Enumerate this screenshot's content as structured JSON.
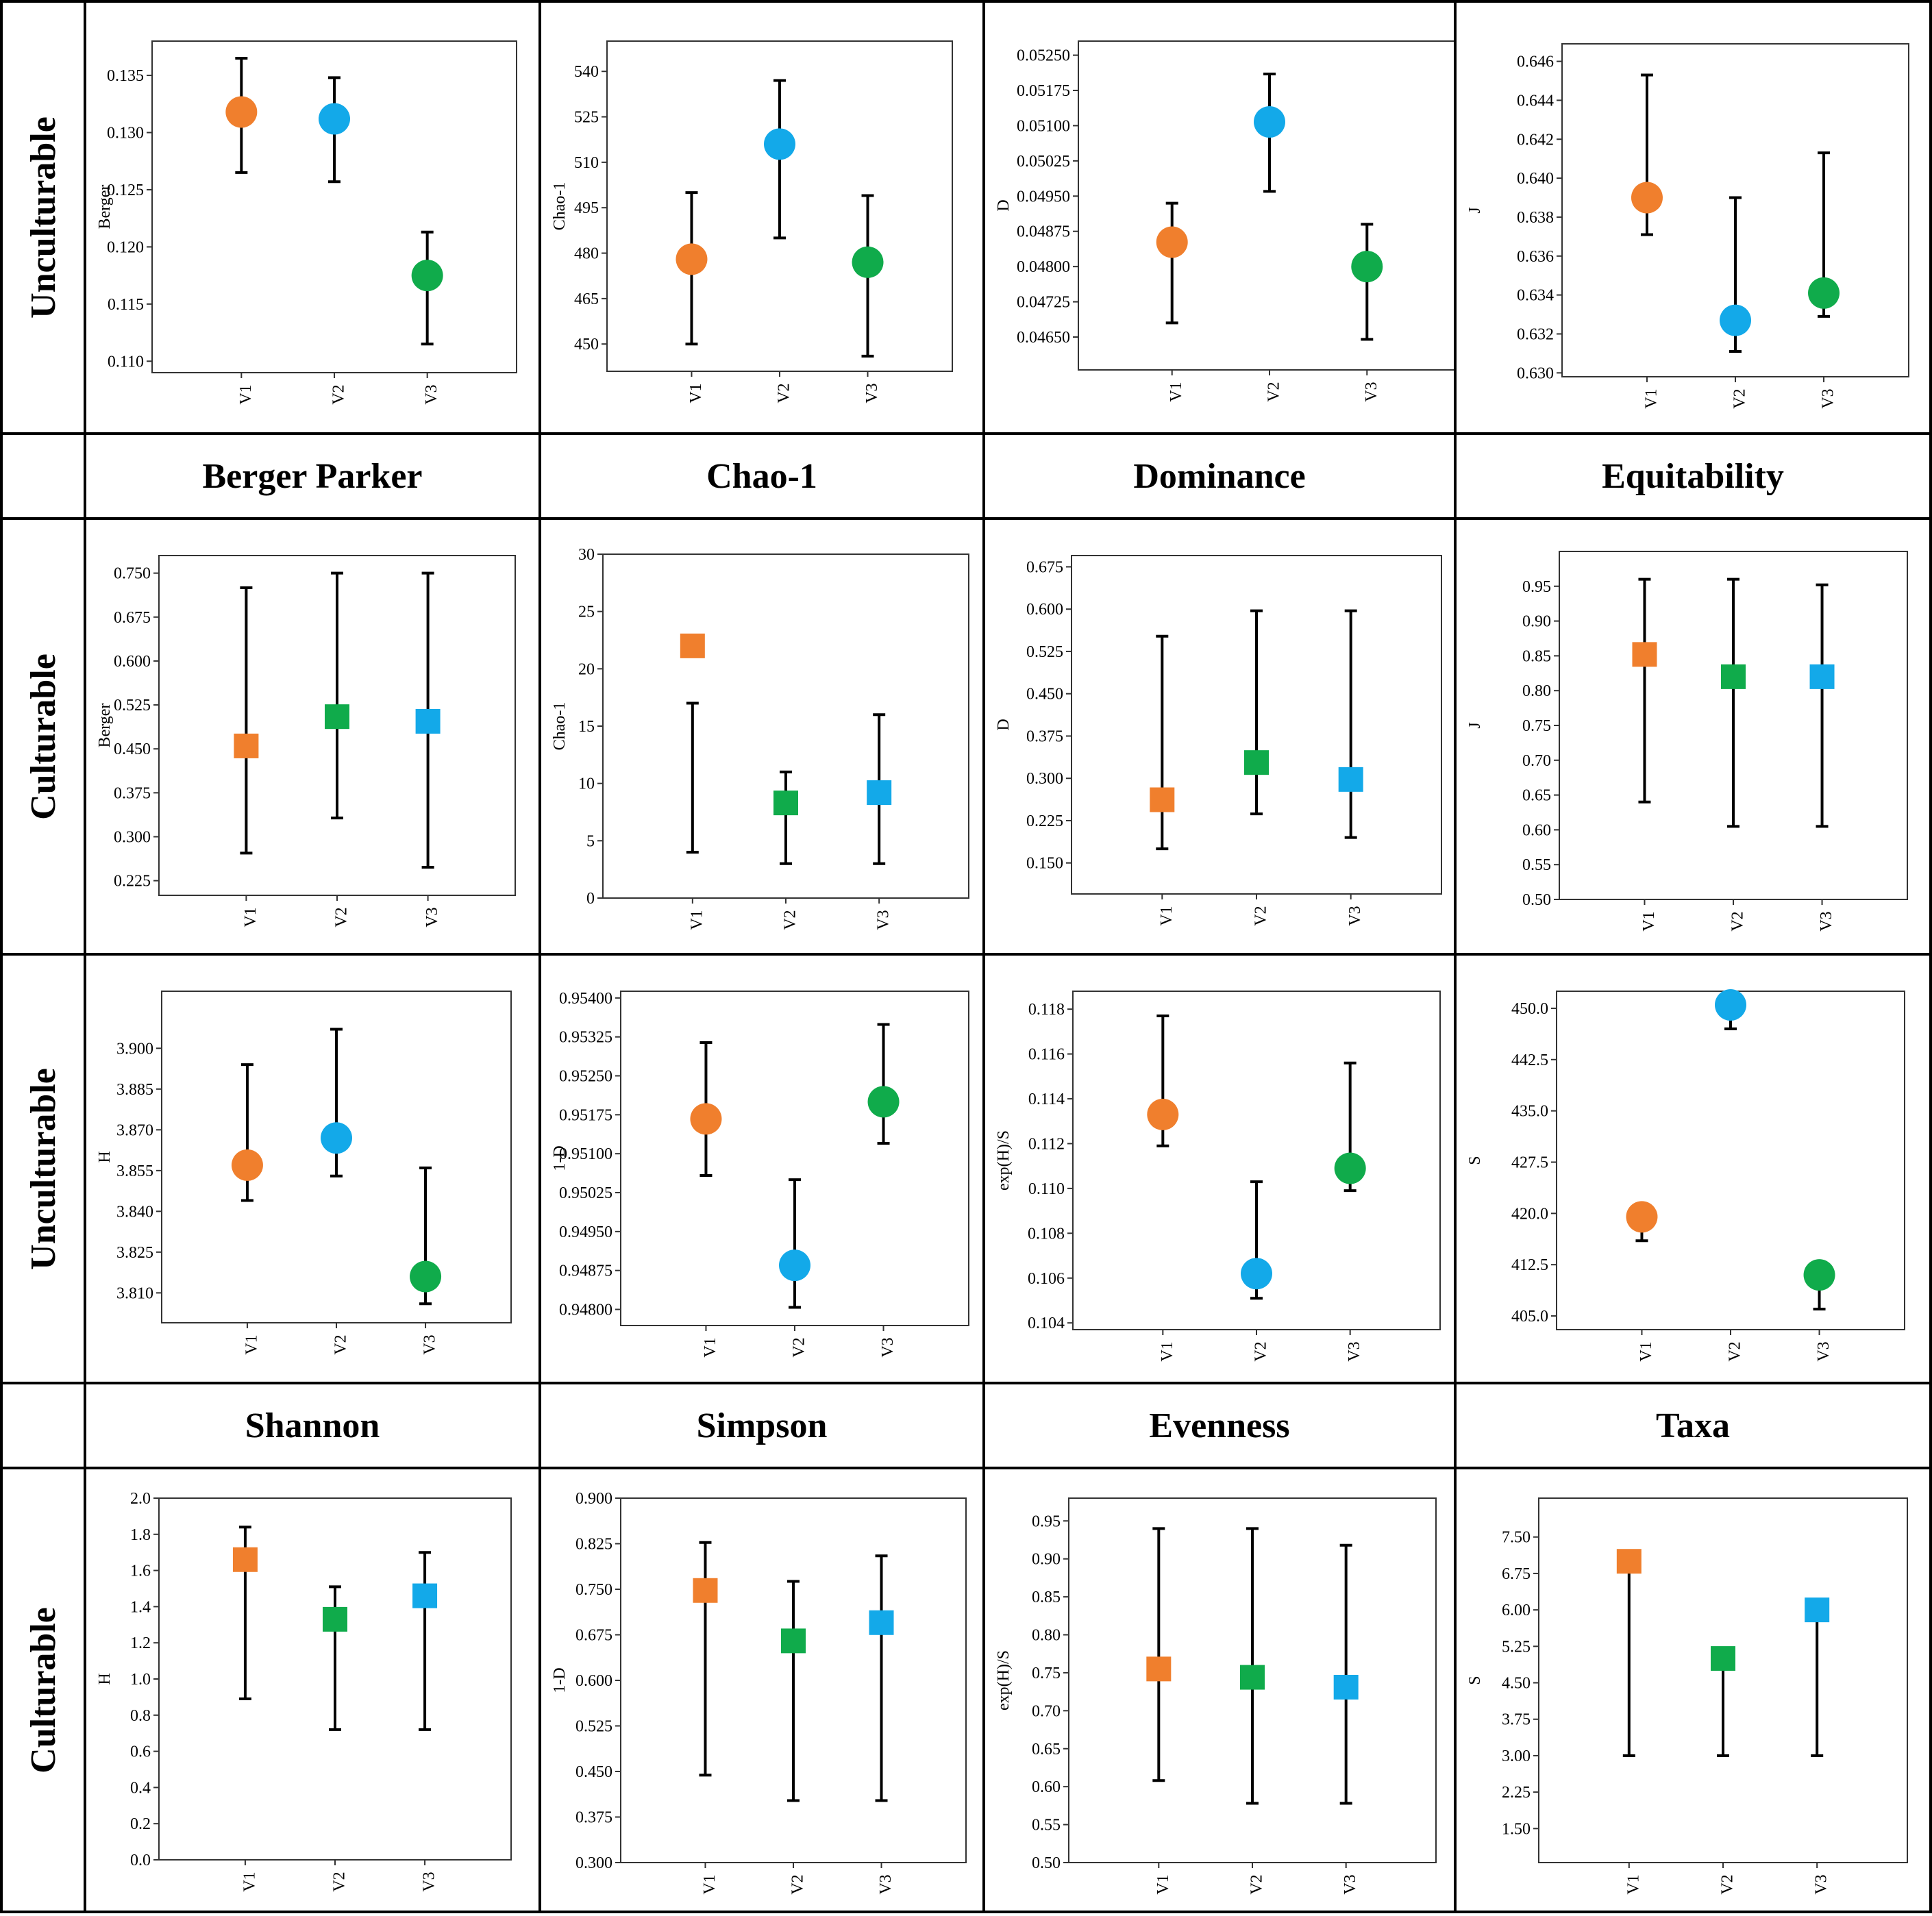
{
  "colors": {
    "orange": "#F07F2D",
    "blue": "#13A9E9",
    "green": "#10AB4B"
  },
  "row_labels": [
    "Unculturable",
    "Culturable",
    "Unculturable",
    "Culturable"
  ],
  "titles_row1": [
    "Berger Parker",
    "Chao-1",
    "Dominance",
    "Equitability"
  ],
  "titles_row2": [
    "Shannon",
    "Simpson",
    "Evenness",
    "Taxa"
  ],
  "chart_data": [
    {
      "type": "scatter",
      "panel": "Berger Parker - Unculturable",
      "ylabel": "Berger",
      "categories": [
        "V1",
        "V2",
        "V3"
      ],
      "ylim": [
        0.109,
        0.138
      ],
      "yticks": [
        "0.110",
        "0.115",
        "0.120",
        "0.125",
        "0.130",
        "0.135"
      ],
      "marker": "circle",
      "colors": [
        "orange",
        "blue",
        "green"
      ],
      "values": [
        0.1318,
        0.1312,
        0.1175
      ],
      "err_low": [
        0.1265,
        0.1257,
        0.1115
      ],
      "err_high": [
        0.1365,
        0.1348,
        0.1213
      ]
    },
    {
      "type": "scatter",
      "panel": "Chao-1 - Unculturable",
      "ylabel": "Chao-1",
      "categories": [
        "V1",
        "V2",
        "V3"
      ],
      "ylim": [
        441,
        550
      ],
      "yticks": [
        "450",
        "465",
        "480",
        "495",
        "510",
        "525",
        "540"
      ],
      "marker": "circle",
      "colors": [
        "orange",
        "blue",
        "green"
      ],
      "values": [
        478,
        516,
        477
      ],
      "err_low": [
        450,
        485,
        446
      ],
      "err_high": [
        500,
        537,
        499
      ]
    },
    {
      "type": "scatter",
      "panel": "Dominance - Unculturable",
      "ylabel": "D",
      "categories": [
        "V1",
        "V2",
        "V3"
      ],
      "ylim": [
        0.0458,
        0.0528
      ],
      "yticks": [
        "0.04650",
        "0.04725",
        "0.04800",
        "0.04875",
        "0.04950",
        "0.05025",
        "0.05100",
        "0.05175",
        "0.05250"
      ],
      "marker": "circle",
      "colors": [
        "orange",
        "blue",
        "green"
      ],
      "values": [
        0.04852,
        0.05108,
        0.048
      ],
      "err_low": [
        0.0468,
        0.0496,
        0.04645
      ],
      "err_high": [
        0.04935,
        0.0521,
        0.0489
      ]
    },
    {
      "type": "scatter",
      "panel": "Equitability - Unculturable",
      "ylabel": "J",
      "categories": [
        "V1",
        "V2",
        "V3"
      ],
      "ylim": [
        0.6298,
        0.6469
      ],
      "yticks": [
        "0.630",
        "0.632",
        "0.634",
        "0.636",
        "0.638",
        "0.640",
        "0.642",
        "0.644",
        "0.646"
      ],
      "marker": "circle",
      "colors": [
        "orange",
        "blue",
        "green"
      ],
      "values": [
        0.639,
        0.6327,
        0.6341
      ],
      "err_low": [
        0.6371,
        0.6311,
        0.6329
      ],
      "err_high": [
        0.6453,
        0.639,
        0.6413
      ]
    },
    {
      "type": "scatter",
      "panel": "Berger Parker - Culturable",
      "ylabel": "Berger",
      "categories": [
        "V1",
        "V2",
        "V3"
      ],
      "ylim": [
        0.2,
        0.78
      ],
      "yticks": [
        "0.225",
        "0.300",
        "0.375",
        "0.450",
        "0.525",
        "0.600",
        "0.675",
        "0.750"
      ],
      "marker": "square",
      "colors": [
        "orange",
        "green",
        "blue"
      ],
      "values": [
        0.455,
        0.505,
        0.497
      ],
      "err_low": [
        0.272,
        0.332,
        0.248
      ],
      "err_high": [
        0.725,
        0.75,
        0.75
      ]
    },
    {
      "type": "scatter",
      "panel": "Chao-1 - Culturable",
      "ylabel": "Chao-1",
      "categories": [
        "V1",
        "V2",
        "V3"
      ],
      "ylim": [
        0,
        30
      ],
      "yticks": [
        "0",
        "5",
        "10",
        "15",
        "20",
        "25",
        "30"
      ],
      "marker": "square",
      "colors": [
        "orange",
        "green",
        "blue"
      ],
      "values": [
        22,
        8.3,
        9.2
      ],
      "err_low": [
        4,
        3,
        3
      ],
      "err_high": [
        17,
        11,
        16
      ]
    },
    {
      "type": "scatter",
      "panel": "Dominance - Culturable",
      "ylabel": "D",
      "categories": [
        "V1",
        "V2",
        "V3"
      ],
      "ylim": [
        0.095,
        0.695
      ],
      "yticks": [
        "0.150",
        "0.225",
        "0.300",
        "0.375",
        "0.450",
        "0.525",
        "0.600",
        "0.675"
      ],
      "marker": "square",
      "colors": [
        "orange",
        "green",
        "blue"
      ],
      "values": [
        0.262,
        0.328,
        0.298
      ],
      "err_low": [
        0.175,
        0.237,
        0.195
      ],
      "err_high": [
        0.552,
        0.597,
        0.597
      ]
    },
    {
      "type": "scatter",
      "panel": "Equitability - Culturable",
      "ylabel": "J",
      "categories": [
        "V1",
        "V2",
        "V3"
      ],
      "ylim": [
        0.5,
        1.0
      ],
      "yticks": [
        "0.50",
        "0.55",
        "0.60",
        "0.65",
        "0.70",
        "0.75",
        "0.80",
        "0.85",
        "0.90",
        "0.95"
      ],
      "marker": "square",
      "colors": [
        "orange",
        "green",
        "blue"
      ],
      "values": [
        0.852,
        0.82,
        0.82
      ],
      "err_low": [
        0.64,
        0.605,
        0.605
      ],
      "err_high": [
        0.96,
        0.96,
        0.952
      ]
    },
    {
      "type": "scatter",
      "panel": "Shannon - Unculturable",
      "ylabel": "H",
      "categories": [
        "V1",
        "V2",
        "V3"
      ],
      "ylim": [
        3.799,
        3.921
      ],
      "yticks": [
        "3.810",
        "3.825",
        "3.840",
        "3.855",
        "3.870",
        "3.885",
        "3.900"
      ],
      "marker": "circle",
      "colors": [
        "orange",
        "blue",
        "green"
      ],
      "values": [
        3.857,
        3.867,
        3.816
      ],
      "err_low": [
        3.844,
        3.853,
        3.806
      ],
      "err_high": [
        3.894,
        3.907,
        3.856
      ]
    },
    {
      "type": "scatter",
      "panel": "Simpson - Unculturable",
      "ylabel": "1-D",
      "categories": [
        "V1",
        "V2",
        "V3"
      ],
      "ylim": [
        0.94769,
        0.95413
      ],
      "yticks": [
        "0.94800",
        "0.94875",
        "0.94950",
        "0.95025",
        "0.95100",
        "0.95175",
        "0.95250",
        "0.95325",
        "0.95400"
      ],
      "marker": "circle",
      "colors": [
        "orange",
        "blue",
        "green"
      ],
      "values": [
        0.95167,
        0.94885,
        0.952
      ],
      "err_low": [
        0.95058,
        0.94804,
        0.9512
      ],
      "err_high": [
        0.95314,
        0.9505,
        0.95349
      ]
    },
    {
      "type": "scatter",
      "panel": "Evenness - Unculturable",
      "ylabel": "exp(H)/S",
      "categories": [
        "V1",
        "V2",
        "V3"
      ],
      "ylim": [
        0.1037,
        0.1188
      ],
      "yticks": [
        "0.104",
        "0.106",
        "0.108",
        "0.110",
        "0.112",
        "0.114",
        "0.116",
        "0.118"
      ],
      "marker": "circle",
      "colors": [
        "orange",
        "blue",
        "green"
      ],
      "values": [
        0.1133,
        0.1062,
        0.1109
      ],
      "err_low": [
        0.1119,
        0.1051,
        0.1099
      ],
      "err_high": [
        0.1177,
        0.1103,
        0.1156
      ]
    },
    {
      "type": "scatter",
      "panel": "Taxa - Unculturable",
      "ylabel": "S",
      "categories": [
        "V1",
        "V2",
        "V3"
      ],
      "ylim": [
        403,
        452.5
      ],
      "yticks": [
        "405.0",
        "412.5",
        "420.0",
        "427.5",
        "435.0",
        "442.5",
        "450.0"
      ],
      "marker": "circle",
      "colors": [
        "orange",
        "blue",
        "green"
      ],
      "values": [
        419.5,
        450.5,
        411
      ],
      "err_low": [
        416,
        447,
        406
      ],
      "err_high": [
        419,
        450,
        411
      ]
    },
    {
      "type": "scatter",
      "panel": "Shannon - Culturable",
      "ylabel": "H",
      "categories": [
        "V1",
        "V2",
        "V3"
      ],
      "ylim": [
        0,
        2.0
      ],
      "yticks": [
        "0.0",
        "0.2",
        "0.4",
        "0.6",
        "0.8",
        "1.0",
        "1.2",
        "1.4",
        "1.6",
        "1.8",
        "2.0"
      ],
      "marker": "square",
      "colors": [
        "orange",
        "green",
        "blue"
      ],
      "values": [
        1.66,
        1.33,
        1.46
      ],
      "err_low": [
        0.89,
        0.72,
        0.72
      ],
      "err_high": [
        1.84,
        1.51,
        1.7
      ]
    },
    {
      "type": "scatter",
      "panel": "Simpson - Culturable",
      "ylabel": "1-D",
      "categories": [
        "V1",
        "V2",
        "V3"
      ],
      "ylim": [
        0.3,
        0.9
      ],
      "yticks": [
        "0.300",
        "0.375",
        "0.450",
        "0.525",
        "0.600",
        "0.675",
        "0.750",
        "0.825",
        "0.900"
      ],
      "marker": "square",
      "colors": [
        "orange",
        "green",
        "blue"
      ],
      "values": [
        0.748,
        0.665,
        0.695
      ],
      "err_low": [
        0.444,
        0.402,
        0.402
      ],
      "err_high": [
        0.827,
        0.763,
        0.805
      ]
    },
    {
      "type": "scatter",
      "panel": "Evenness - Culturable",
      "ylabel": "exp(H)/S",
      "categories": [
        "V1",
        "V2",
        "V3"
      ],
      "ylim": [
        0.5,
        0.98
      ],
      "yticks": [
        "0.50",
        "0.55",
        "0.60",
        "0.65",
        "0.70",
        "0.75",
        "0.80",
        "0.85",
        "0.90",
        "0.95"
      ],
      "marker": "square",
      "colors": [
        "orange",
        "green",
        "blue"
      ],
      "values": [
        0.755,
        0.744,
        0.731
      ],
      "err_low": [
        0.608,
        0.578,
        0.578
      ],
      "err_high": [
        0.94,
        0.94,
        0.918
      ]
    },
    {
      "type": "scatter",
      "panel": "Taxa - Culturable",
      "ylabel": "S",
      "categories": [
        "V1",
        "V2",
        "V3"
      ],
      "ylim": [
        0.8,
        8.3
      ],
      "yticks": [
        "1.50",
        "2.25",
        "3.00",
        "3.75",
        "4.50",
        "5.25",
        "6.00",
        "6.75",
        "7.50"
      ],
      "marker": "square",
      "colors": [
        "orange",
        "green",
        "blue"
      ],
      "values": [
        7.0,
        5.0,
        6.0
      ],
      "err_low": [
        3.0,
        3.0,
        3.0
      ],
      "err_high": [
        7.0,
        5.0,
        6.0
      ]
    }
  ]
}
